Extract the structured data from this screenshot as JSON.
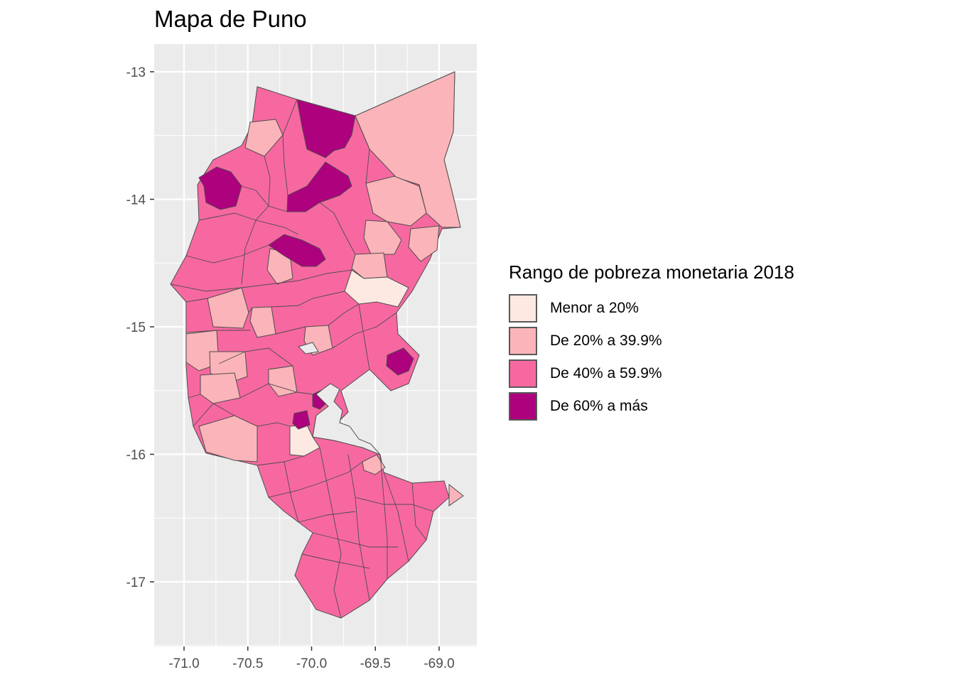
{
  "chart_data": {
    "type": "choropleth",
    "title": "Mapa de Puno",
    "x_ticks": [
      "-71.0",
      "-70.5",
      "-70.0",
      "-69.5",
      "-69.0"
    ],
    "y_ticks": [
      "-13",
      "-14",
      "-15",
      "-16",
      "-17"
    ],
    "xlim": [
      -71.25,
      -68.75
    ],
    "ylim": [
      -17.5,
      -12.8
    ],
    "grid": true,
    "legend_position": "right",
    "legend": {
      "title": "Rango de pobreza monetaria 2018",
      "items": [
        {
          "label": "Menor a 20%",
          "color": "#fde9e1"
        },
        {
          "label": "De 20% a 39.9%",
          "color": "#fbb4b9"
        },
        {
          "label": "De 40% a 59.9%",
          "color": "#f768a1"
        },
        {
          "label": "De 60% a más",
          "color": "#ae017e"
        }
      ]
    },
    "colors": {
      "panel_background": "#ebebeb",
      "grid_line": "#ffffff",
      "border": "#4d4d4d"
    }
  }
}
